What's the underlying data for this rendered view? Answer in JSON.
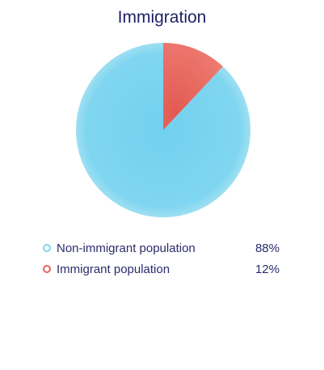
{
  "chart_data": {
    "type": "pie",
    "title": "Immigration",
    "categories": [
      "Non-immigrant population",
      "Immigrant population"
    ],
    "values": [
      88,
      12
    ],
    "value_labels": [
      "88%",
      "12%"
    ],
    "colors": [
      "#7dd3ee",
      "#e8635a"
    ],
    "legend_placement": "bottom"
  },
  "legend": [
    {
      "label": "Non-immigrant population",
      "value": "88%",
      "color": "#7dd3ee"
    },
    {
      "label": "Immigrant population",
      "value": "12%",
      "color": "#e8635a"
    }
  ]
}
